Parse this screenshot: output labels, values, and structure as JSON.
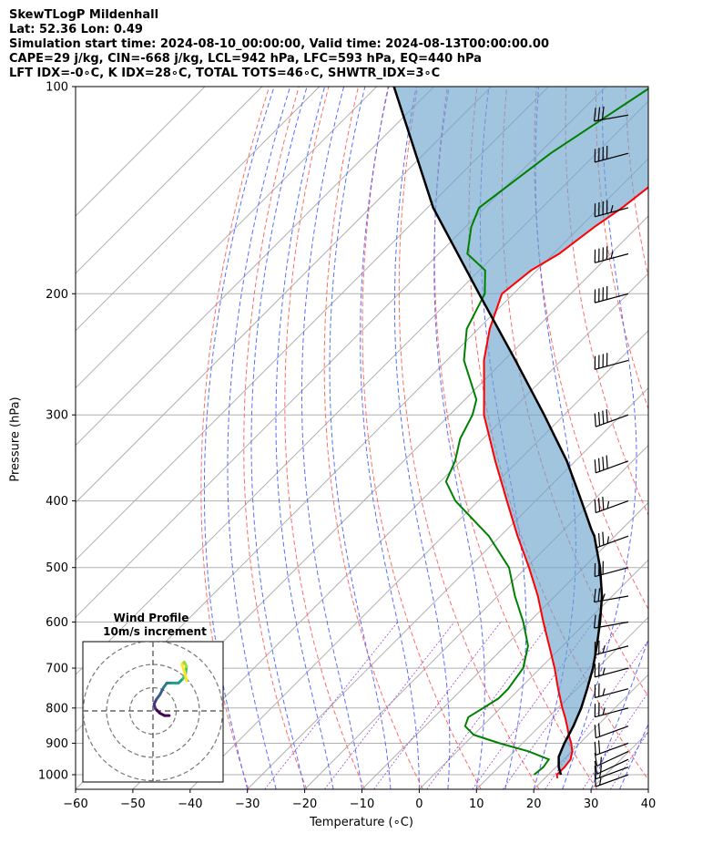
{
  "header": {
    "line1": "SkewTLogP Mildenhall",
    "line2": "Lat: 52.36   Lon: 0.49",
    "line3": "Simulation start time: 2024-08-10_00:00:00, Valid time: 2024-08-13T00:00:00.00",
    "line4": "CAPE=29 j/kg, CIN=-668 j/kg, LCL=942 hPa, LFC=593 hPa, EQ=440 hPa",
    "line5": "LFT IDX=-0∘C, K IDX=28∘C, TOTAL TOTS=46∘C, SHWTR_IDX=3∘C"
  },
  "chart_data": {
    "type": "skewt",
    "title": "SkewTLogP Mildenhall",
    "xlabel": "Temperature (∘C)",
    "ylabel": "Pressure (hPa)",
    "xlim": [
      -60,
      40
    ],
    "ylim": [
      1050,
      100
    ],
    "x_ticks": [
      -60,
      -50,
      -40,
      -30,
      -20,
      -10,
      0,
      10,
      20,
      30,
      40
    ],
    "y_ticks": [
      100,
      200,
      300,
      400,
      500,
      600,
      700,
      800,
      900,
      1000
    ],
    "temperature": {
      "name": "Temperature",
      "color": "#ff0000",
      "p": [
        1012,
        1000,
        975,
        950,
        925,
        900,
        875,
        850,
        825,
        800,
        775,
        750,
        700,
        650,
        600,
        550,
        500,
        450,
        400,
        350,
        300,
        275,
        250,
        225,
        200,
        185,
        175,
        160,
        150,
        140,
        130,
        125,
        120,
        110,
        100
      ],
      "t": [
        22.2,
        21.5,
        21.5,
        21.2,
        20.1,
        18.5,
        16.6,
        14.8,
        12.9,
        10.8,
        8.8,
        6.7,
        2.5,
        -2.3,
        -7.5,
        -13,
        -19.5,
        -27,
        -35,
        -44,
        -54,
        -58.5,
        -63.5,
        -68,
        -72,
        -71,
        -69,
        -67.5,
        -66,
        -65,
        -64.5,
        -64,
        -62.7,
        -61,
        -59.5
      ]
    },
    "dewpoint": {
      "name": "Dewpoint",
      "color": "#008000",
      "p": [
        1000,
        975,
        950,
        925,
        900,
        875,
        850,
        825,
        800,
        775,
        750,
        700,
        650,
        600,
        550,
        500,
        450,
        400,
        375,
        350,
        325,
        300,
        285,
        250,
        225,
        200,
        185,
        175,
        160,
        150,
        125,
        100
      ],
      "t": [
        17.5,
        17.8,
        17.4,
        12.5,
        6,
        0,
        -3,
        -4,
        -3,
        -2,
        -2,
        -3,
        -6,
        -11,
        -17,
        -23,
        -32,
        -44,
        -49,
        -51,
        -54,
        -56,
        -58,
        -67,
        -72,
        -75,
        -79,
        -85,
        -89,
        -91,
        -88,
        -82
      ]
    },
    "parcel": {
      "name": "Parcel profile",
      "color": "#000000",
      "p": [
        1000,
        975,
        942,
        900,
        850,
        800,
        750,
        700,
        650,
        600,
        550,
        500,
        450,
        440,
        400,
        350,
        300,
        250,
        200,
        150,
        100
      ],
      "t": [
        22.2,
        20.5,
        18.7,
        17.3,
        15.9,
        14.1,
        11.8,
        9.2,
        6.0,
        2.4,
        -1.8,
        -7.1,
        -13.6,
        -15.3,
        -22,
        -31.5,
        -43.5,
        -58,
        -76,
        -99,
        -127
      ]
    },
    "shading": [
      "CAPE (blue)",
      "CIN (blue)"
    ],
    "wind_barbs": {
      "p": [
        1000,
        975,
        950,
        925,
        900,
        850,
        800,
        750,
        700,
        650,
        600,
        550,
        500,
        450,
        400,
        350,
        300,
        250,
        200,
        175,
        150,
        125,
        110
      ],
      "speed_kt": [
        15,
        15,
        15,
        15,
        20,
        20,
        25,
        25,
        25,
        25,
        20,
        25,
        30,
        35,
        35,
        40,
        40,
        40,
        40,
        45,
        45,
        40,
        30
      ],
      "direction_deg": [
        250,
        250,
        245,
        245,
        250,
        250,
        255,
        255,
        255,
        255,
        260,
        260,
        255,
        250,
        250,
        250,
        250,
        255,
        255,
        255,
        255,
        255,
        260
      ]
    },
    "hodograph": {
      "title": "Wind Profile",
      "subtitle": "10m/s increment",
      "rings_ms": [
        10,
        20,
        30
      ],
      "u": [
        7,
        5,
        3,
        1,
        0.5,
        1.5,
        3,
        4.5,
        6,
        8,
        11,
        13,
        14,
        14.5,
        13.5,
        12.5,
        13.5,
        14.5
      ],
      "v": [
        -2,
        -2,
        -1,
        1,
        3,
        5,
        7,
        10,
        12,
        12,
        12,
        14,
        16,
        19,
        21,
        20,
        17,
        13
      ]
    }
  }
}
